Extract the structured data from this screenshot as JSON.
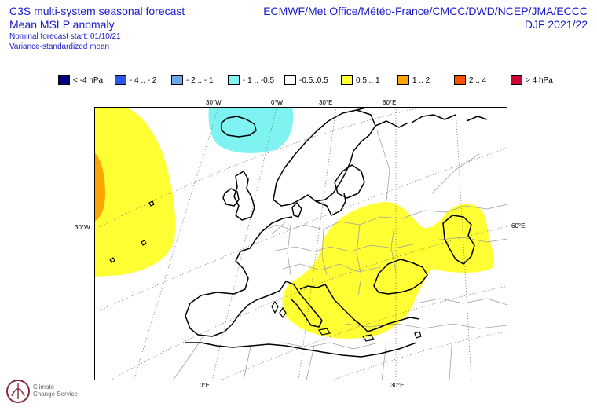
{
  "header": {
    "title_line1": "C3S multi-system seasonal forecast",
    "title_line2": "Mean MSLP anomaly",
    "subtitle_line1": "Nominal forecast start: 01/10/21",
    "subtitle_line2": "Variance-standardized mean",
    "centres": "ECMWF/Met Office/Météo-France/CMCC/DWD/NCEP/JMA/ECCC",
    "season": "DJF 2021/22"
  },
  "legend": [
    {
      "label": "< -4 hPa",
      "color": "#000080"
    },
    {
      "label": "- 4 .. - 2",
      "color": "#2b55f2"
    },
    {
      "label": "- 2 .. - 1",
      "color": "#66a8f2"
    },
    {
      "label": "- 1 .. -0.5",
      "color": "#7ff2f2"
    },
    {
      "label": "-0.5..0.5",
      "color": "#ffffff"
    },
    {
      "label": "0.5 .. 1",
      "color": "#ffff33"
    },
    {
      "label": "1 .. 2",
      "color": "#ffa500"
    },
    {
      "label": "2 .. 4",
      "color": "#ff5000"
    },
    {
      "label": "> 4 hPa",
      "color": "#cc0033"
    }
  ],
  "map_labels": {
    "top_30w": "30°W",
    "top_0w": "0°W",
    "top_30e": "30°E",
    "top_60e": "60°E",
    "left_30w": "30°W",
    "right_60e": "60°E",
    "bottom_0e": "0°E",
    "bottom_30e": "30°E"
  },
  "logo": {
    "line1": "Climate",
    "line2": "Change Service"
  }
}
